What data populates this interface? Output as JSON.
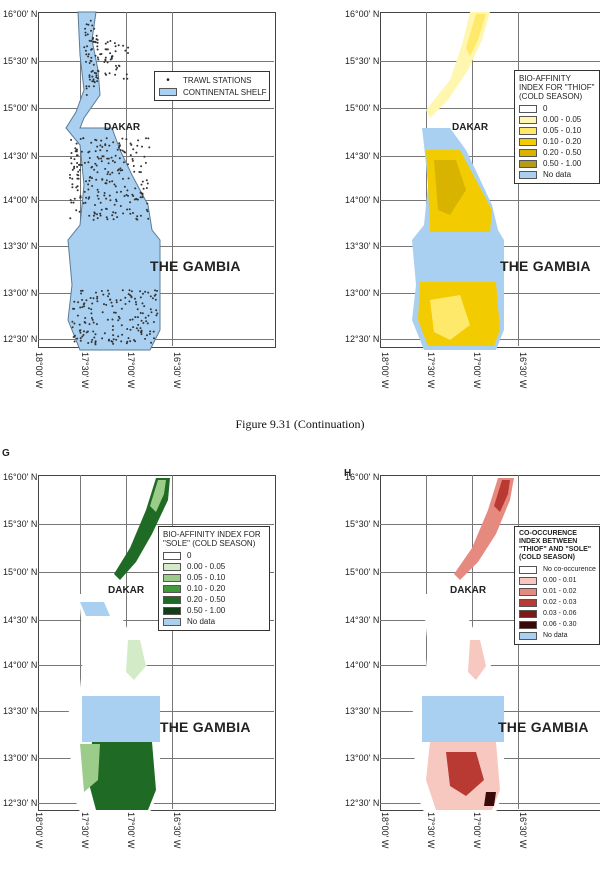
{
  "figure_caption": "Figure 9.31    (Continuation)",
  "lat_labels": [
    "16°00' N",
    "15°30' N",
    "15°00' N",
    "14°30' N",
    "14°00' N",
    "13°30' N",
    "13°00' N",
    "12°30' N"
  ],
  "lon_labels": [
    "18°00' W",
    "17°30' W",
    "17°00' W",
    "16°30' W"
  ],
  "place_labels": {
    "dakar": "DAKAR",
    "gambia": "THE GAMBIA"
  },
  "panels": {
    "a": {
      "letter": "",
      "legend": [
        {
          "label": "TRAWL STATIONS",
          "symbol": "dot",
          "color": "#333333"
        },
        {
          "label": "CONTINENTAL SHELF",
          "symbol": "box",
          "color": "#a9d0f0"
        }
      ]
    },
    "b": {
      "letter": "",
      "legend_title": "BIO-AFFINITY INDEX FOR \"THIOF\" (COLD SEASON)",
      "legend": [
        {
          "label": "0",
          "color": "#ffffff"
        },
        {
          "label": "0.00 - 0.05",
          "color": "#fff6b0"
        },
        {
          "label": "0.05 - 0.10",
          "color": "#ffe96a"
        },
        {
          "label": "0.10 - 0.20",
          "color": "#f2cc00"
        },
        {
          "label": "0.20 - 0.50",
          "color": "#d8b300"
        },
        {
          "label": "0.50 - 1.00",
          "color": "#b59a1a"
        },
        {
          "label": "No data",
          "color": "#a9d0f0"
        }
      ]
    },
    "c": {
      "letter": "G",
      "legend_title": "BIO-AFFINITY INDEX FOR \"SOLE\" (COLD SEASON)",
      "legend": [
        {
          "label": "0",
          "color": "#ffffff"
        },
        {
          "label": "0.00 - 0.05",
          "color": "#d4ebc8"
        },
        {
          "label": "0.05 - 0.10",
          "color": "#9ccc8a"
        },
        {
          "label": "0.10 - 0.20",
          "color": "#3f9a3c"
        },
        {
          "label": "0.20 - 0.50",
          "color": "#1f6a25"
        },
        {
          "label": "0.50 - 1.00",
          "color": "#103f16"
        },
        {
          "label": "No data",
          "color": "#a9d0f0"
        }
      ]
    },
    "d": {
      "letter": "H",
      "legend_title": "CO-OCCURENCE INDEX BETWEEN \"THIOF\" AND \"SOLE\" (COLD SEASON)",
      "legend": [
        {
          "label": "No co-occurence",
          "color": "#ffffff"
        },
        {
          "label": "0.00 - 0.01",
          "color": "#f6c8c0"
        },
        {
          "label": "0.01 - 0.02",
          "color": "#e68a80"
        },
        {
          "label": "0.02 - 0.03",
          "color": "#b83a32"
        },
        {
          "label": "0.03 - 0.06",
          "color": "#7c1a18"
        },
        {
          "label": "0.06 - 0.30",
          "color": "#3a0a0a"
        },
        {
          "label": "No data",
          "color": "#a9d0f0"
        }
      ]
    }
  }
}
